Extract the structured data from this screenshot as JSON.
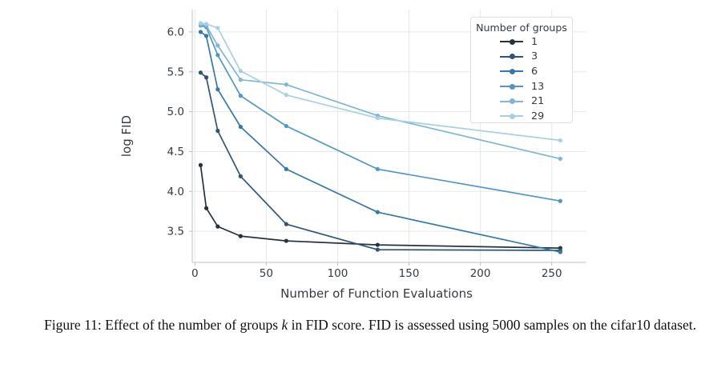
{
  "figure": {
    "caption": {
      "part1": "Figure 11: Effect of the number of groups ",
      "math_k": "k",
      "part2": " in FID score. FID is assessed using 5000 samples on",
      "part3": "the cifar10 dataset."
    }
  },
  "chart_data": {
    "type": "line",
    "title": "",
    "xlabel": "Number of Function Evaluations",
    "ylabel": "log FID",
    "grid": true,
    "legend": {
      "title": "Number of groups",
      "position": "upper right"
    },
    "x": [
      4,
      8,
      16,
      32,
      64,
      128,
      256
    ],
    "x_ticks": [
      {
        "value": 0,
        "label": "0"
      },
      {
        "value": 50,
        "label": "50"
      },
      {
        "value": 100,
        "label": "100"
      },
      {
        "value": 150,
        "label": "150"
      },
      {
        "value": 200,
        "label": "200"
      },
      {
        "value": 250,
        "label": "250"
      }
    ],
    "y_ticks": [
      {
        "value": 3.5,
        "label": "3.5"
      },
      {
        "value": 4.0,
        "label": "4.0"
      },
      {
        "value": 4.5,
        "label": "4.5"
      },
      {
        "value": 5.0,
        "label": "5.0"
      },
      {
        "value": 5.5,
        "label": "5.5"
      },
      {
        "value": 6.0,
        "label": "6.0"
      }
    ],
    "xlim": [
      -1.85,
      274.3
    ],
    "ylim": [
      3.11,
      6.28
    ],
    "series": [
      {
        "name": "1",
        "color": "#26323e",
        "values": [
          4.33,
          3.79,
          3.56,
          3.44,
          3.38,
          3.33,
          3.29
        ]
      },
      {
        "name": "3",
        "color": "#2d5578",
        "values": [
          5.49,
          5.43,
          4.76,
          4.19,
          3.59,
          3.27,
          3.26
        ]
      },
      {
        "name": "6",
        "color": "#3578ab",
        "values": [
          6.0,
          5.95,
          5.28,
          4.81,
          4.28,
          3.74,
          3.24
        ]
      },
      {
        "name": "13",
        "color": "#4f97c9",
        "values": [
          6.08,
          6.06,
          5.71,
          5.2,
          4.82,
          4.28,
          3.88
        ]
      },
      {
        "name": "21",
        "color": "#7db6d9",
        "values": [
          6.09,
          6.08,
          5.83,
          5.4,
          5.34,
          4.95,
          4.41
        ]
      },
      {
        "name": "29",
        "color": "#a9cfe5",
        "values": [
          6.11,
          6.1,
          6.05,
          5.51,
          5.21,
          4.92,
          4.64
        ]
      }
    ],
    "style": {
      "grid_color": "#e7e8ec",
      "spine_color": "#cbced2",
      "tick_color": "#b9bcc0",
      "text_color": "#343a40"
    }
  }
}
